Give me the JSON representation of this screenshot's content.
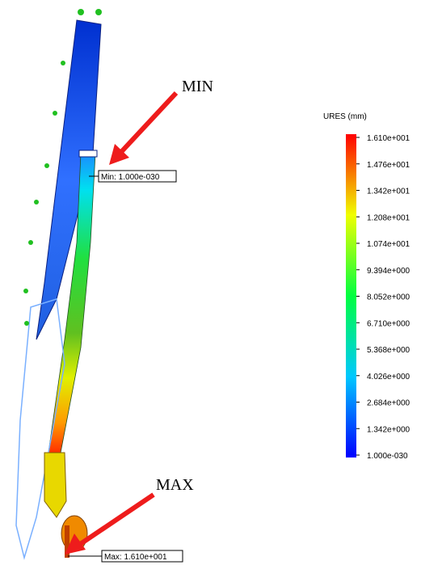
{
  "annotations": {
    "min_arrow": "MIN",
    "max_arrow": "MAX",
    "min_probe": "Min: 1.000e-030",
    "max_probe": "Max: 1.610e+001"
  },
  "legend": {
    "title": "URES (mm)",
    "labels": [
      "1.610e+001",
      "1.476e+001",
      "1.342e+001",
      "1.208e+001",
      "1.074e+001",
      "9.394e+000",
      "8.052e+000",
      "6.710e+000",
      "5.368e+000",
      "4.026e+000",
      "2.684e+000",
      "1.342e+000",
      "1.000e-030"
    ]
  }
}
